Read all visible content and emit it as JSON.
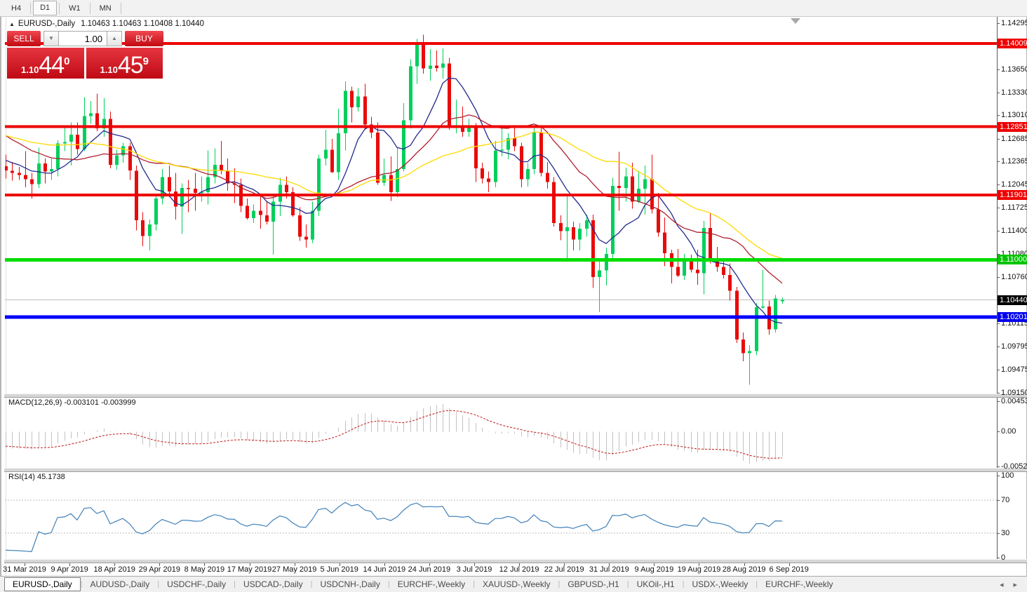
{
  "toolbar": {
    "timeframes": [
      {
        "label": "H4",
        "active": false
      },
      {
        "label": "D1",
        "active": true
      },
      {
        "label": "W1",
        "active": false
      },
      {
        "label": "MN",
        "active": false
      }
    ]
  },
  "chart_header": {
    "collapse_icon": "▲",
    "symbol_label": "EURUSD-,Daily",
    "ohlc": "1.10463 1.10463 1.10408 1.10440"
  },
  "trade_panel": {
    "sell_label": "SELL",
    "buy_label": "BUY",
    "lot_value": "1.00",
    "step_down_icon": "▼",
    "step_up_icon": "▲",
    "sell_price": {
      "prefix": "1.10",
      "big": "44",
      "sup": "0"
    },
    "buy_price": {
      "prefix": "1.10",
      "big": "45",
      "sup": "9"
    }
  },
  "price_axis": {
    "ticks": [
      {
        "label": "1.14295",
        "price": 1.14295
      },
      {
        "label": "1.13650",
        "price": 1.1365
      },
      {
        "label": "1.13330",
        "price": 1.1333
      },
      {
        "label": "1.13010",
        "price": 1.1301
      },
      {
        "label": "1.12685",
        "price": 1.12685
      },
      {
        "label": "1.12365",
        "price": 1.12365
      },
      {
        "label": "1.12045",
        "price": 1.12045
      },
      {
        "label": "1.11725",
        "price": 1.11725
      },
      {
        "label": "1.11400",
        "price": 1.114
      },
      {
        "label": "1.11080",
        "price": 1.1108
      },
      {
        "label": "1.10760",
        "price": 1.1076
      },
      {
        "label": "1.10115",
        "price": 1.10115
      },
      {
        "label": "1.09795",
        "price": 1.09795
      },
      {
        "label": "1.09475",
        "price": 1.09475
      },
      {
        "label": "1.09150",
        "price": 1.0915
      }
    ],
    "badges": [
      {
        "label": "1.14009",
        "price": 1.14009,
        "color": "#ee0000"
      },
      {
        "label": "1.12851",
        "price": 1.12851,
        "color": "#ee0000"
      },
      {
        "label": "1.11901",
        "price": 1.11901,
        "color": "#ee0000"
      },
      {
        "label": "1.11000",
        "price": 1.11,
        "color": "#00c300"
      },
      {
        "label": "1.10440",
        "price": 1.1044,
        "color": "#000000"
      },
      {
        "label": "1.10201",
        "price": 1.10201,
        "color": "#0000ee"
      }
    ]
  },
  "macd": {
    "label": "MACD(12,26,9) -0.003101 -0.003999",
    "scale": [
      {
        "label": "0.004536",
        "v": 0.004536
      },
      {
        "label": "0.00",
        "v": 0
      },
      {
        "label": "-0.005205",
        "v": -0.005205
      }
    ]
  },
  "rsi": {
    "label": "RSI(14) 45.1738",
    "scale": [
      {
        "label": "100",
        "v": 100
      },
      {
        "label": "70",
        "v": 70
      },
      {
        "label": "30",
        "v": 30
      },
      {
        "label": "0",
        "v": 0
      }
    ]
  },
  "date_axis": [
    "31 Mar 2019",
    "9 Apr 2019",
    "18 Apr 2019",
    "29 Apr 2019",
    "8 May 2019",
    "17 May 2019",
    "27 May 2019",
    "5 Jun 2019",
    "14 Jun 2019",
    "24 Jun 2019",
    "3 Jul 2019",
    "12 Jul 2019",
    "22 Jul 2019",
    "31 Jul 2019",
    "9 Aug 2019",
    "19 Aug 2019",
    "28 Aug 2019",
    "6 Sep 2019"
  ],
  "tabs": {
    "items": [
      {
        "label": "EURUSD-,Daily",
        "active": true
      },
      {
        "label": "AUDUSD-,Daily",
        "active": false
      },
      {
        "label": "USDCHF-,Daily",
        "active": false
      },
      {
        "label": "USDCAD-,Daily",
        "active": false
      },
      {
        "label": "USDCNH-,Daily",
        "active": false
      },
      {
        "label": "EURCHF-,Weekly",
        "active": false
      },
      {
        "label": "XAUUSD-,Weekly",
        "active": false
      },
      {
        "label": "GBPUSD-,H1",
        "active": false
      },
      {
        "label": "UKOil-,H1",
        "active": false
      },
      {
        "label": "USDX-,Weekly",
        "active": false
      },
      {
        "label": "EURCHF-,Weekly",
        "active": false
      }
    ],
    "nav_left": "◂",
    "nav_right": "▸"
  },
  "chart_data": {
    "type": "candlestick",
    "symbol": "EURUSD-",
    "timeframe": "Daily",
    "title": "EURUSD-,Daily",
    "price_range": [
      1.0915,
      1.1437
    ],
    "current_price": 1.1044,
    "colors": {
      "bull": "#00cf5c",
      "bear": "#e80b0b"
    },
    "hlines": [
      {
        "price": 1.14009,
        "color": "#ee0000",
        "width": 4
      },
      {
        "price": 1.12851,
        "color": "#ee0000",
        "width": 4
      },
      {
        "price": 1.11901,
        "color": "#ee0000",
        "width": 4
      },
      {
        "price": 1.11,
        "color": "#00dd00",
        "width": 5
      },
      {
        "price": 1.10201,
        "color": "#0000ff",
        "width": 5
      }
    ],
    "moving_averages": [
      {
        "period": 8,
        "color": "#232a8f"
      },
      {
        "period": 21,
        "color": "#b02030"
      },
      {
        "period": 34,
        "color": "#ffd900"
      }
    ],
    "macd_params": [
      12,
      26,
      9
    ],
    "rsi_period": 14,
    "rsi_levels": [
      70,
      30
    ],
    "indicator_warmup_closes": [
      1.1336,
      1.1327,
      1.132,
      1.1312,
      1.1305,
      1.1298,
      1.129,
      1.1284,
      1.1277,
      1.1281,
      1.1271,
      1.1263,
      1.1256,
      1.1249,
      1.1242,
      1.1246,
      1.1239,
      1.1243,
      1.1236,
      1.1229
    ],
    "ohlc": [
      [
        1.123,
        1.1246,
        1.1213,
        1.1224
      ],
      [
        1.1224,
        1.1236,
        1.121,
        1.1221
      ],
      [
        1.1221,
        1.1229,
        1.1211,
        1.1218
      ],
      [
        1.1218,
        1.1251,
        1.1201,
        1.1212
      ],
      [
        1.1212,
        1.1221,
        1.1185,
        1.1205
      ],
      [
        1.1205,
        1.1256,
        1.12,
        1.1234
      ],
      [
        1.1234,
        1.1241,
        1.1206,
        1.1223
      ],
      [
        1.1223,
        1.1241,
        1.1211,
        1.1226
      ],
      [
        1.1226,
        1.1266,
        1.1216,
        1.1262
      ],
      [
        1.1262,
        1.1286,
        1.1251,
        1.1264
      ],
      [
        1.1264,
        1.1291,
        1.1231,
        1.1274
      ],
      [
        1.1274,
        1.1291,
        1.1246,
        1.1254
      ],
      [
        1.1254,
        1.1326,
        1.1251,
        1.13
      ],
      [
        1.13,
        1.1321,
        1.1289,
        1.1304
      ],
      [
        1.1304,
        1.1331,
        1.1279,
        1.1283
      ],
      [
        1.1283,
        1.1325,
        1.1271,
        1.1296
      ],
      [
        1.1296,
        1.1306,
        1.1227,
        1.1232
      ],
      [
        1.1232,
        1.1253,
        1.1225,
        1.1245
      ],
      [
        1.1245,
        1.1263,
        1.1235,
        1.1258
      ],
      [
        1.1258,
        1.1263,
        1.1211,
        1.1224
      ],
      [
        1.1224,
        1.1231,
        1.1141,
        1.1155
      ],
      [
        1.1155,
        1.1166,
        1.1119,
        1.1133
      ],
      [
        1.1133,
        1.1156,
        1.1113,
        1.1149
      ],
      [
        1.1149,
        1.1191,
        1.1141,
        1.1185
      ],
      [
        1.1185,
        1.1226,
        1.1177,
        1.1215
      ],
      [
        1.1215,
        1.1231,
        1.1187,
        1.1195
      ],
      [
        1.1195,
        1.1221,
        1.1156,
        1.1174
      ],
      [
        1.1174,
        1.1206,
        1.1136,
        1.12
      ],
      [
        1.12,
        1.1211,
        1.1166,
        1.1199
      ],
      [
        1.1199,
        1.1221,
        1.1168,
        1.1193
      ],
      [
        1.1193,
        1.1216,
        1.1181,
        1.1194
      ],
      [
        1.1194,
        1.1252,
        1.1177,
        1.1215
      ],
      [
        1.1215,
        1.1255,
        1.1206,
        1.1232
      ],
      [
        1.1232,
        1.1265,
        1.1219,
        1.1224
      ],
      [
        1.1224,
        1.1241,
        1.1196,
        1.1206
      ],
      [
        1.1206,
        1.1227,
        1.1179,
        1.1204
      ],
      [
        1.1204,
        1.1213,
        1.1166,
        1.1175
      ],
      [
        1.1175,
        1.1185,
        1.1156,
        1.1158
      ],
      [
        1.1158,
        1.1177,
        1.1151,
        1.1168
      ],
      [
        1.1168,
        1.1189,
        1.1143,
        1.1162
      ],
      [
        1.1162,
        1.1181,
        1.1149,
        1.1153
      ],
      [
        1.1153,
        1.1189,
        1.1107,
        1.1181
      ],
      [
        1.1181,
        1.1214,
        1.1161,
        1.1204
      ],
      [
        1.1204,
        1.1216,
        1.1185,
        1.1194
      ],
      [
        1.1194,
        1.1201,
        1.116,
        1.1162
      ],
      [
        1.1162,
        1.1173,
        1.1126,
        1.1132
      ],
      [
        1.1132,
        1.1149,
        1.1117,
        1.1128
      ],
      [
        1.1128,
        1.1181,
        1.1123,
        1.1168
      ],
      [
        1.1168,
        1.1246,
        1.1161,
        1.1241
      ],
      [
        1.1241,
        1.1281,
        1.1231,
        1.1253
      ],
      [
        1.1253,
        1.1268,
        1.1221,
        1.1222
      ],
      [
        1.1222,
        1.131,
        1.1211,
        1.1276
      ],
      [
        1.1276,
        1.1348,
        1.1252,
        1.1335
      ],
      [
        1.1335,
        1.1341,
        1.1291,
        1.1312
      ],
      [
        1.1312,
        1.1339,
        1.1306,
        1.1327
      ],
      [
        1.1327,
        1.1345,
        1.1281,
        1.1288
      ],
      [
        1.1288,
        1.1299,
        1.1269,
        1.1277
      ],
      [
        1.1277,
        1.1291,
        1.1204,
        1.1207
      ],
      [
        1.1207,
        1.1241,
        1.1203,
        1.1218
      ],
      [
        1.1218,
        1.1244,
        1.1182,
        1.1194
      ],
      [
        1.1194,
        1.1256,
        1.1187,
        1.1226
      ],
      [
        1.1226,
        1.1318,
        1.1223,
        1.1294
      ],
      [
        1.1294,
        1.1379,
        1.1283,
        1.1369
      ],
      [
        1.1369,
        1.1407,
        1.1345,
        1.1399
      ],
      [
        1.1399,
        1.1413,
        1.1359,
        1.1366
      ],
      [
        1.1366,
        1.1393,
        1.1349,
        1.137
      ],
      [
        1.137,
        1.1391,
        1.1362,
        1.1367
      ],
      [
        1.1367,
        1.1394,
        1.1352,
        1.1373
      ],
      [
        1.1373,
        1.1381,
        1.1281,
        1.1285
      ],
      [
        1.1285,
        1.1323,
        1.1276,
        1.1286
      ],
      [
        1.1286,
        1.1313,
        1.1271,
        1.1278
      ],
      [
        1.1278,
        1.1296,
        1.1271,
        1.1285
      ],
      [
        1.1285,
        1.129,
        1.1208,
        1.1227
      ],
      [
        1.1227,
        1.1235,
        1.1206,
        1.1213
      ],
      [
        1.1213,
        1.1223,
        1.1194,
        1.1208
      ],
      [
        1.1208,
        1.1265,
        1.1201,
        1.1252
      ],
      [
        1.1252,
        1.1286,
        1.1244,
        1.1253
      ],
      [
        1.1253,
        1.1276,
        1.124,
        1.1269
      ],
      [
        1.1269,
        1.1286,
        1.1251,
        1.1258
      ],
      [
        1.1258,
        1.1263,
        1.1201,
        1.1212
      ],
      [
        1.1212,
        1.1234,
        1.1202,
        1.1226
      ],
      [
        1.1226,
        1.1283,
        1.1219,
        1.1277
      ],
      [
        1.1277,
        1.1284,
        1.1216,
        1.1221
      ],
      [
        1.1221,
        1.1236,
        1.1199,
        1.1208
      ],
      [
        1.1208,
        1.1215,
        1.1146,
        1.1151
      ],
      [
        1.1151,
        1.1162,
        1.1127,
        1.114
      ],
      [
        1.114,
        1.1188,
        1.1102,
        1.1145
      ],
      [
        1.1145,
        1.1153,
        1.1113,
        1.1128
      ],
      [
        1.1128,
        1.1151,
        1.1113,
        1.1143
      ],
      [
        1.1143,
        1.1163,
        1.1132,
        1.1155
      ],
      [
        1.1155,
        1.1163,
        1.1061,
        1.1076
      ],
      [
        1.1076,
        1.1099,
        1.1027,
        1.1085
      ],
      [
        1.1085,
        1.1117,
        1.1064,
        1.1108
      ],
      [
        1.1108,
        1.1214,
        1.1102,
        1.1203
      ],
      [
        1.1203,
        1.125,
        1.1168,
        1.12
      ],
      [
        1.12,
        1.1228,
        1.1181,
        1.1216
      ],
      [
        1.1216,
        1.1235,
        1.1171,
        1.1181
      ],
      [
        1.1181,
        1.1224,
        1.1179,
        1.1199
      ],
      [
        1.1199,
        1.1231,
        1.1163,
        1.1212
      ],
      [
        1.1212,
        1.1246,
        1.1164,
        1.117
      ],
      [
        1.117,
        1.1193,
        1.1132,
        1.1138
      ],
      [
        1.1138,
        1.1159,
        1.1091,
        1.1109
      ],
      [
        1.1109,
        1.1114,
        1.1067,
        1.109
      ],
      [
        1.109,
        1.1115,
        1.1076,
        1.1078
      ],
      [
        1.1078,
        1.1108,
        1.1072,
        1.1098
      ],
      [
        1.1098,
        1.1107,
        1.1082,
        1.1086
      ],
      [
        1.1086,
        1.1114,
        1.1065,
        1.1081
      ],
      [
        1.1081,
        1.1154,
        1.1052,
        1.1144
      ],
      [
        1.1144,
        1.1165,
        1.1095,
        1.1101
      ],
      [
        1.1101,
        1.1118,
        1.1083,
        1.109
      ],
      [
        1.109,
        1.1099,
        1.1074,
        1.1079
      ],
      [
        1.1079,
        1.1095,
        1.1043,
        1.1057
      ],
      [
        1.1057,
        1.1062,
        1.0984,
        1.0989
      ],
      [
        1.0989,
        1.0999,
        1.0959,
        1.097
      ],
      [
        1.097,
        1.0981,
        1.0926,
        1.0973
      ],
      [
        1.0973,
        1.104,
        1.0967,
        1.1034
      ],
      [
        1.1034,
        1.1086,
        1.1032,
        1.1035
      ],
      [
        1.1035,
        1.1043,
        1.0996,
        1.1003
      ],
      [
        1.1003,
        1.1051,
        1.0999,
        1.1046
      ],
      [
        1.1042,
        1.1047,
        1.1039,
        1.1044
      ]
    ]
  }
}
